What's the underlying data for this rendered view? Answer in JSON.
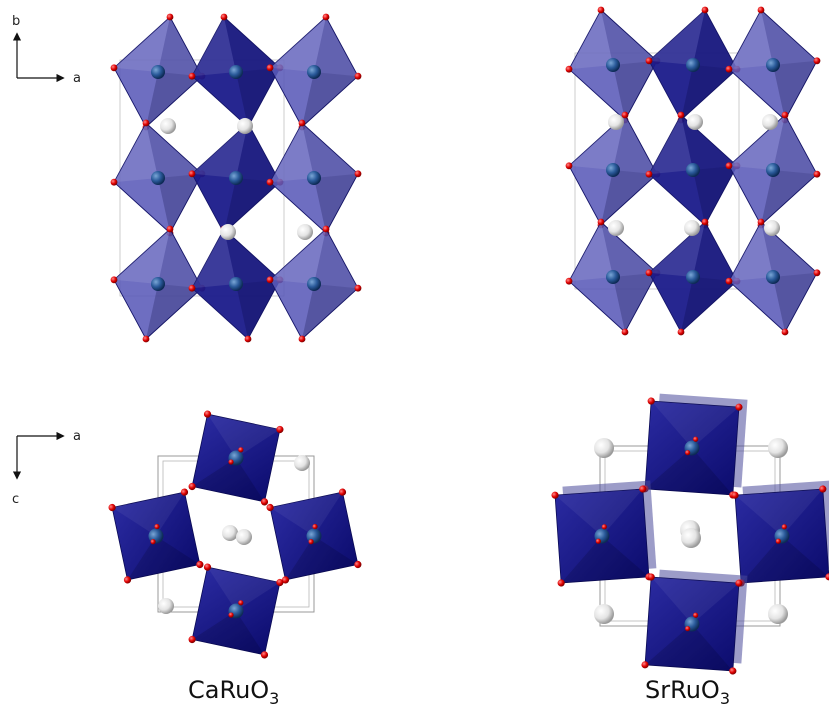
{
  "axes": {
    "side_view": {
      "vertical": "b",
      "horizontal": "a"
    },
    "top_view": {
      "horizontal": "a",
      "vertical": "c"
    }
  },
  "structures": [
    {
      "formula_main": "CaRuO",
      "formula_sub": "3"
    },
    {
      "formula_main": "SrRuO",
      "formula_sub": "3"
    }
  ],
  "colors": {
    "octahedron_light": "#5a5ab8",
    "octahedron_dark": "#1a1a8a",
    "ru_atom": "#2a5a9a",
    "oxygen_atom": "#e00000",
    "a_site_atom": "#e8e8e8",
    "unit_cell": "#999999"
  }
}
